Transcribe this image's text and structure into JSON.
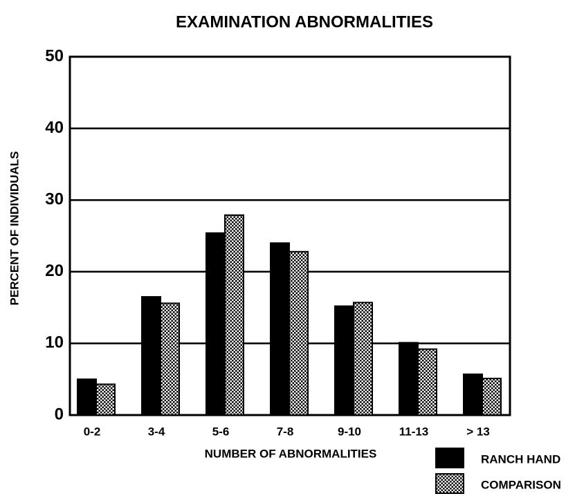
{
  "chart_data": {
    "type": "bar",
    "title": "EXAMINATION ABNORMALITIES",
    "x_label": "NUMBER OF ABNORMALITIES",
    "y_label": "PERCENT OF INDIVIDUALS",
    "categories": [
      "0-2",
      "3-4",
      "5-6",
      "7-8",
      "9-10",
      "11-13",
      "> 13"
    ],
    "series": [
      {
        "name": "RANCH HAND",
        "color": "#000000",
        "values": [
          5.0,
          16.5,
          25.4,
          24.0,
          15.2,
          10.1,
          5.7
        ]
      },
      {
        "name": "COMPARISON",
        "color": "#000000",
        "pattern": "dots",
        "values": [
          4.3,
          15.6,
          27.9,
          22.8,
          15.7,
          9.2,
          5.1
        ]
      }
    ],
    "ylim": [
      0,
      50
    ],
    "yticks": [
      0,
      10,
      20,
      30,
      40,
      50
    ],
    "grid": true
  }
}
